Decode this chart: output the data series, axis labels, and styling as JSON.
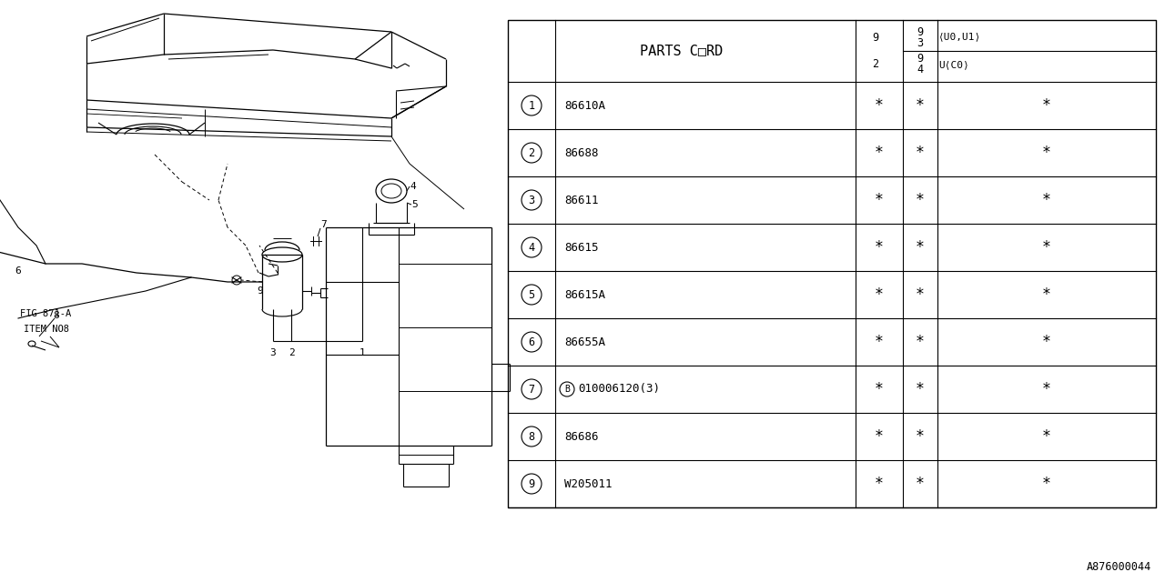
{
  "bg_color": "#ffffff",
  "line_color": "#000000",
  "text_color": "#000000",
  "fig_code": "A876000044",
  "table": {
    "rows": [
      {
        "num": "1",
        "part": "86610A"
      },
      {
        "num": "2",
        "part": "86688"
      },
      {
        "num": "3",
        "part": "86611"
      },
      {
        "num": "4",
        "part": "86615"
      },
      {
        "num": "5",
        "part": "86615A"
      },
      {
        "num": "6",
        "part": "86655A"
      },
      {
        "num": "7",
        "part": "010006120(3)",
        "b_prefix": true
      },
      {
        "num": "8",
        "part": "86686"
      },
      {
        "num": "9",
        "part": "W205011"
      }
    ]
  }
}
